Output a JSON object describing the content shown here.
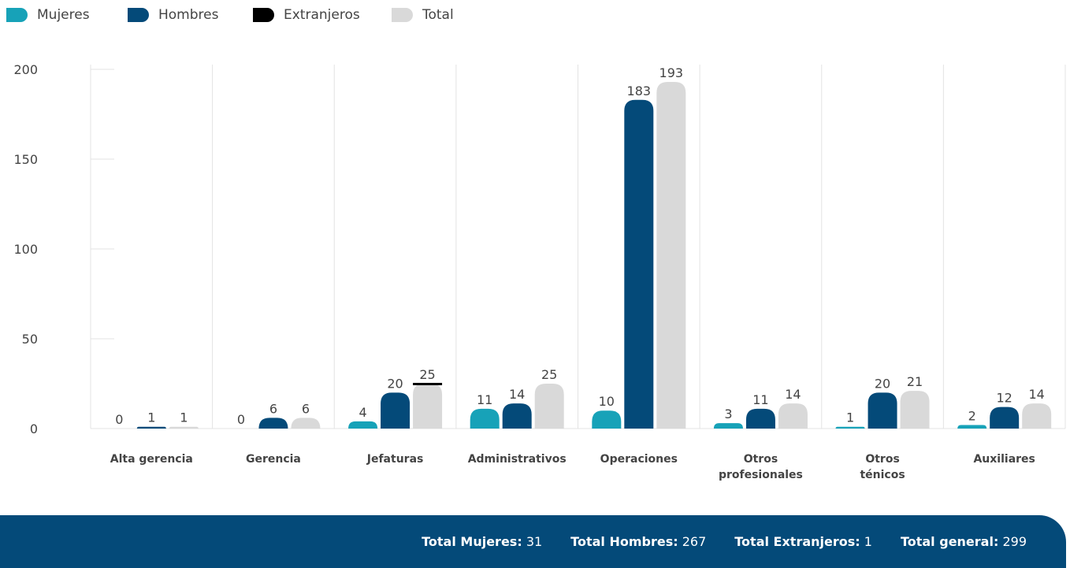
{
  "legend": [
    {
      "label": "Mujeres",
      "color": "#17a2b8"
    },
    {
      "label": "Hombres",
      "color": "#044a79"
    },
    {
      "label": "Extranjeros",
      "color": "#000000"
    },
    {
      "label": "Total",
      "color": "#d9d9d9"
    }
  ],
  "totals": {
    "mujeres_label": "Total Mujeres:",
    "mujeres_value": "31",
    "hombres_label": "Total Hombres:",
    "hombres_value": "267",
    "extranjeros_label": "Total Extranjeros:",
    "extranjeros_value": "1",
    "general_label": "Total general:",
    "general_value": "299"
  },
  "chart_data": {
    "type": "bar",
    "categories": [
      [
        "Alta gerencia"
      ],
      [
        "Gerencia"
      ],
      [
        "Jefaturas"
      ],
      [
        "Administrativos"
      ],
      [
        "Operaciones"
      ],
      [
        "Otros",
        "profesionales"
      ],
      [
        "Otros",
        "ténicos"
      ],
      [
        "Auxiliares"
      ]
    ],
    "series": [
      {
        "name": "Mujeres",
        "color": "#17a2b8",
        "values": [
          0,
          0,
          4,
          11,
          10,
          3,
          1,
          2
        ]
      },
      {
        "name": "Hombres",
        "color": "#044a79",
        "values": [
          1,
          6,
          20,
          14,
          183,
          11,
          20,
          12
        ]
      },
      {
        "name": "Extranjeros",
        "color": "#000000",
        "values": [
          0,
          0,
          1,
          0,
          0,
          0,
          0,
          0
        ]
      },
      {
        "name": "Total",
        "color": "#d9d9d9",
        "values": [
          1,
          6,
          25,
          25,
          193,
          14,
          21,
          14
        ]
      }
    ],
    "yticks": [
      0,
      50,
      100,
      150,
      200
    ],
    "ylim": [
      0,
      200
    ],
    "grid": true,
    "legend_position": "top-left"
  }
}
